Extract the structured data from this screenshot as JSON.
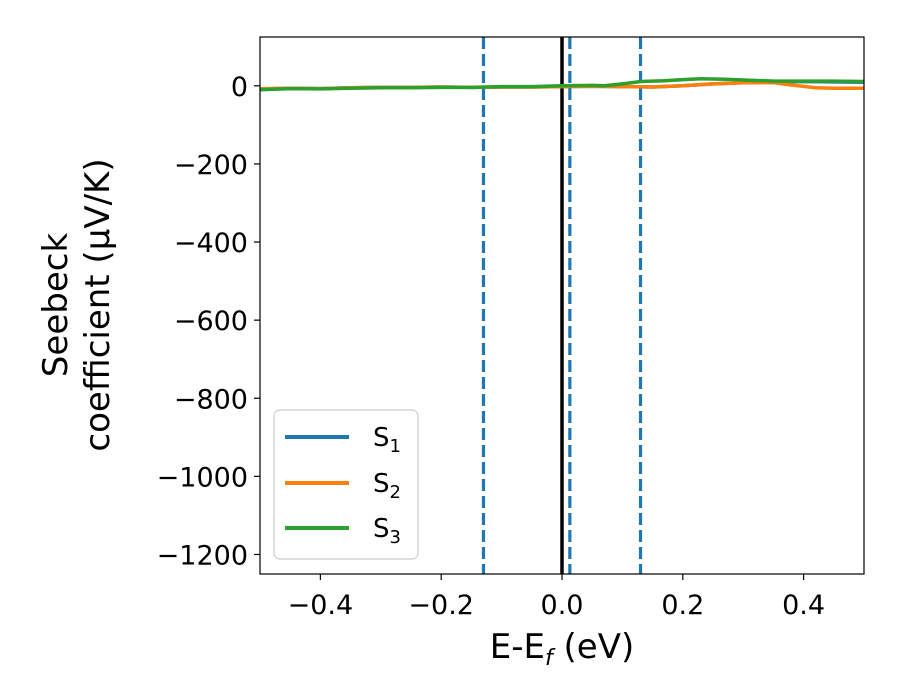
{
  "chart_data": {
    "type": "line",
    "xlabel": {
      "main": "E-E",
      "sub": "f",
      "tail": " (eV)"
    },
    "ylabel": {
      "line1": "Seebeck",
      "line2": "coefficient  (μV/K)"
    },
    "xlim": [
      -0.5,
      0.5
    ],
    "ylim": [
      -1250,
      125
    ],
    "xticks": [
      -0.4,
      -0.2,
      0.0,
      0.2,
      0.4
    ],
    "xtick_labels": [
      "−0.4",
      "−0.2",
      "0.0",
      "0.2",
      "0.4"
    ],
    "yticks": [
      0,
      -200,
      -400,
      -600,
      -800,
      -1000,
      -1200
    ],
    "ytick_labels": [
      "0",
      "−200",
      "−400",
      "−600",
      "−800",
      "−1000",
      "−1200"
    ],
    "legend_position": "lower-left",
    "vertical_lines": [
      {
        "x": 0.0,
        "style": "solid",
        "color": "#000000"
      },
      {
        "x": -0.13,
        "style": "dashed",
        "color": "#1f77b4"
      },
      {
        "x": 0.013,
        "style": "dashed",
        "color": "#1f77b4"
      },
      {
        "x": 0.13,
        "style": "dashed",
        "color": "#1f77b4"
      }
    ],
    "series": [
      {
        "name": {
          "main": "S",
          "sub": "1"
        },
        "color": "#1f77b4",
        "x": [
          -0.5,
          -0.45,
          -0.4,
          -0.35,
          -0.3,
          -0.25,
          -0.2,
          -0.15,
          -0.1,
          -0.05,
          0.0,
          0.05,
          0.1,
          0.15,
          0.2,
          0.25,
          0.3,
          0.35,
          0.4,
          0.45,
          0.5
        ],
        "y": [
          -8,
          -6,
          -7,
          -5,
          -4,
          -4,
          -3,
          -4,
          -3,
          -3,
          -2,
          -1,
          -2,
          -3,
          0,
          5,
          8,
          10,
          11,
          10,
          9
        ]
      },
      {
        "name": {
          "main": "S",
          "sub": "2"
        },
        "color": "#ff7f0e",
        "x": [
          -0.5,
          -0.45,
          -0.4,
          -0.35,
          -0.3,
          -0.25,
          -0.2,
          -0.15,
          -0.1,
          -0.05,
          0.0,
          0.05,
          0.1,
          0.15,
          0.2,
          0.25,
          0.3,
          0.35,
          0.38,
          0.42,
          0.45,
          0.5
        ],
        "y": [
          -8,
          -6,
          -7,
          -5,
          -4,
          -4,
          -3,
          -4,
          -3,
          -3,
          -2,
          -1,
          -2,
          -3,
          0,
          5,
          8,
          8,
          2,
          -5,
          -6,
          -6
        ]
      },
      {
        "name": {
          "main": "S",
          "sub": "3"
        },
        "color": "#2ca02c",
        "x": [
          -0.5,
          -0.45,
          -0.4,
          -0.35,
          -0.3,
          -0.25,
          -0.2,
          -0.15,
          -0.1,
          -0.05,
          0.0,
          0.05,
          0.07,
          0.1,
          0.13,
          0.17,
          0.2,
          0.23,
          0.27,
          0.3,
          0.35,
          0.4,
          0.45,
          0.5
        ],
        "y": [
          -10,
          -7,
          -8,
          -6,
          -5,
          -5,
          -4,
          -4,
          -2,
          -2,
          0,
          1,
          0,
          5,
          11,
          13,
          16,
          18,
          17,
          15,
          12,
          12,
          12,
          11
        ]
      }
    ]
  }
}
